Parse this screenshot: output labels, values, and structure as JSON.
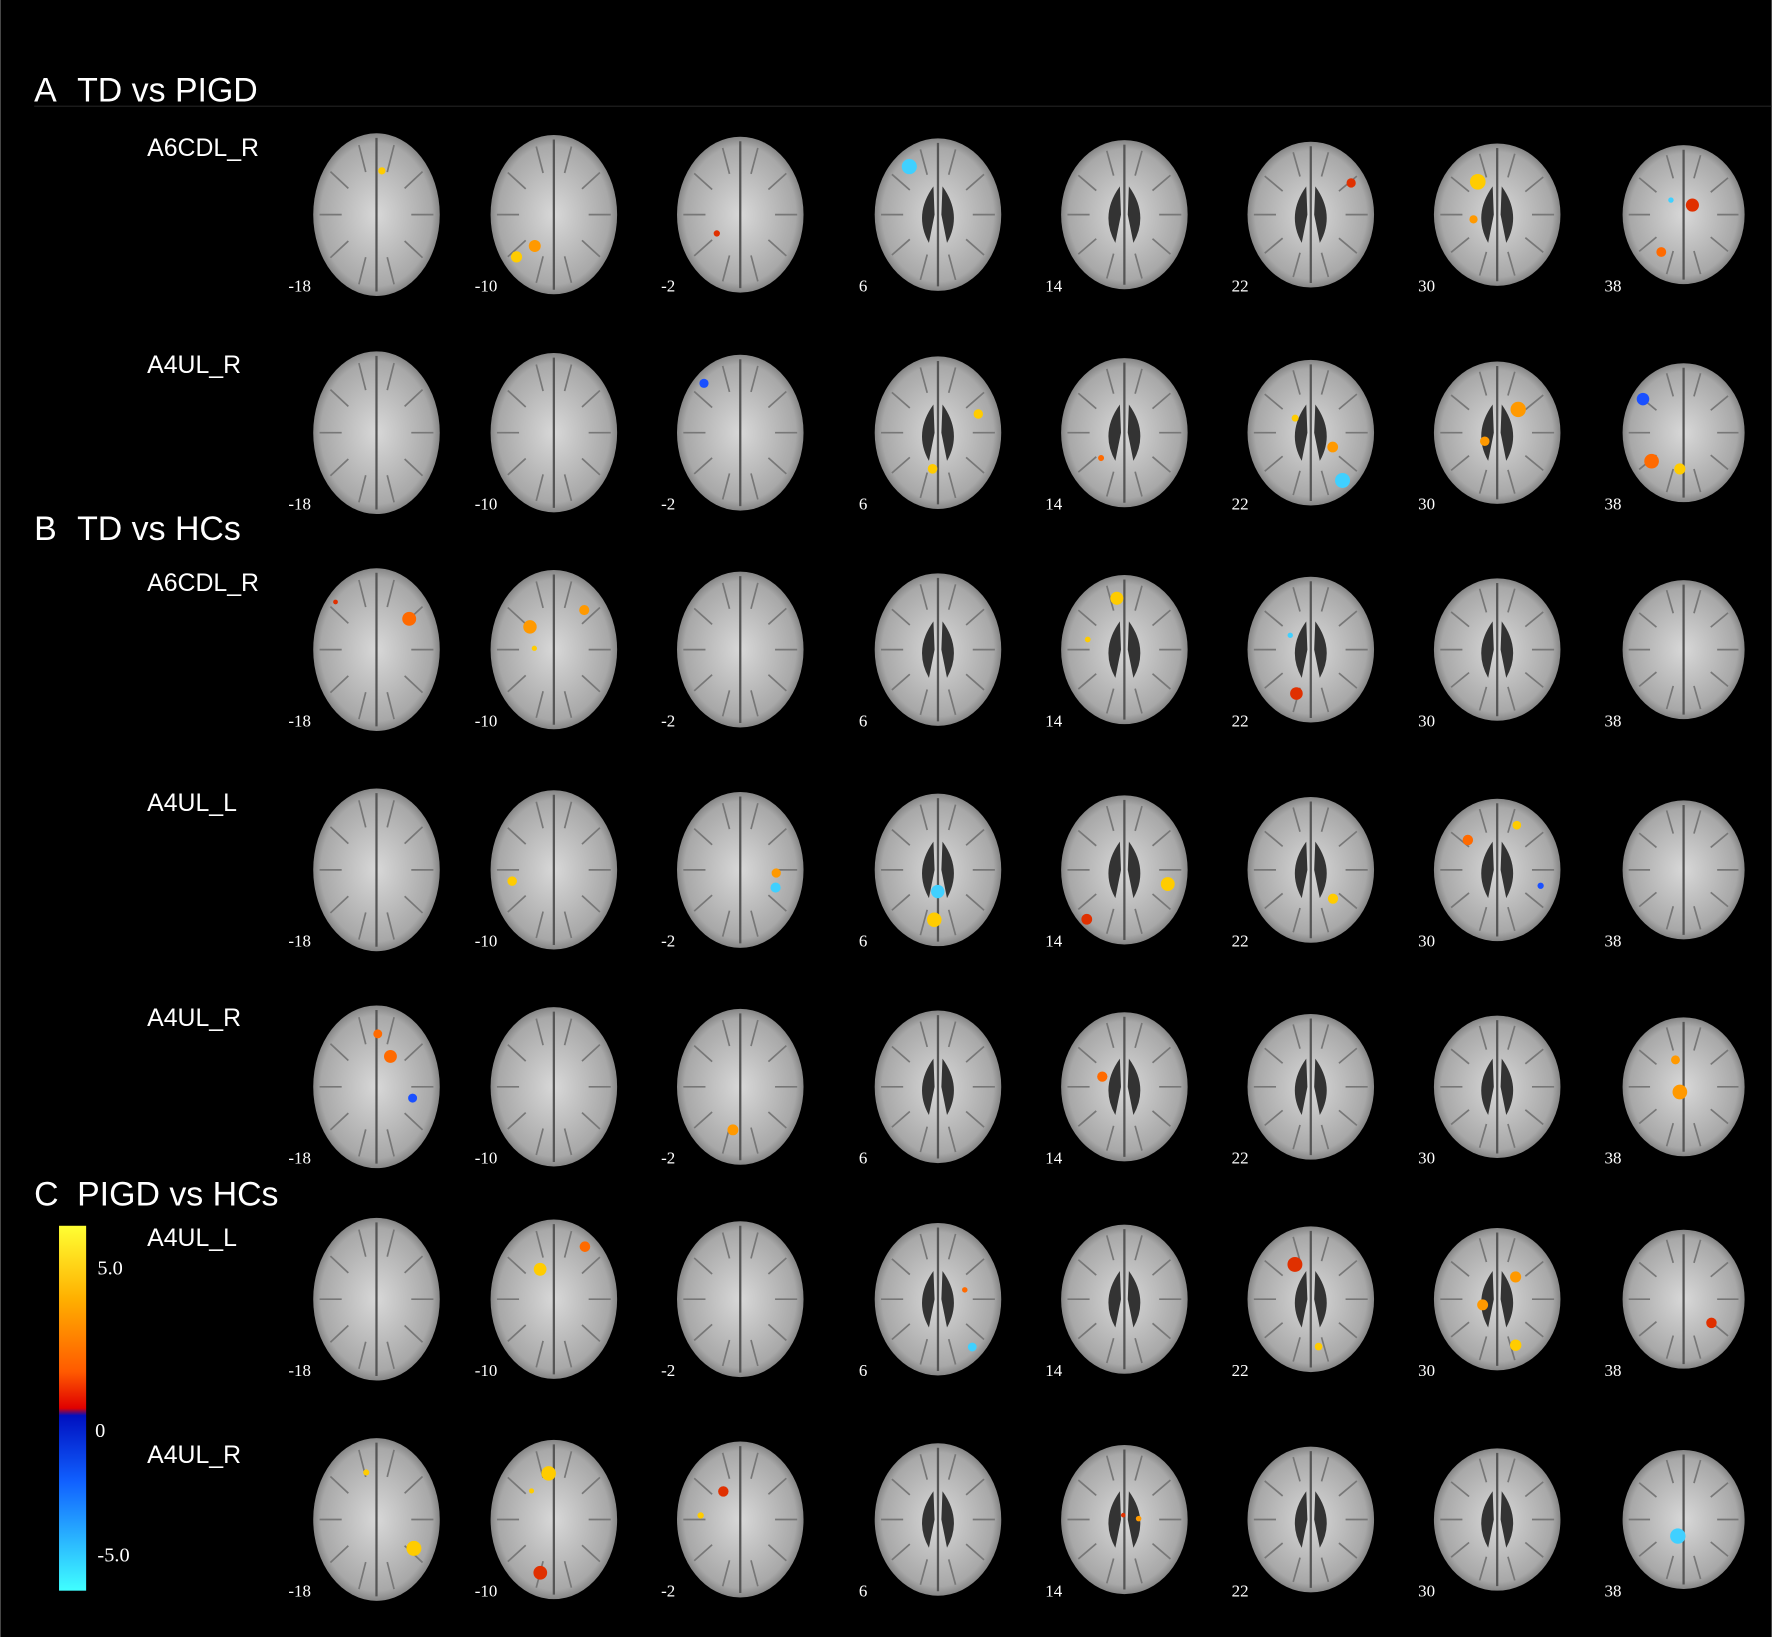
{
  "sections": [
    {
      "label": "A",
      "title": "TD vs PIGD",
      "rows": [
        "A6CDL_R",
        "A4UL_R"
      ]
    },
    {
      "label": "B",
      "title": "TD vs HCs",
      "rows": [
        "A6CDL_R",
        "A4UL_L",
        "A4UL_R"
      ]
    },
    {
      "label": "C",
      "title": "PIGD vs HCs",
      "rows": [
        "A4UL_L",
        "A4UL_R"
      ]
    }
  ],
  "slices": [
    "-18",
    "-10",
    "-2",
    "6",
    "14",
    "22",
    "30",
    "38"
  ],
  "colorbar": {
    "labels": [
      "5.0",
      "0",
      "-5.0"
    ]
  }
}
